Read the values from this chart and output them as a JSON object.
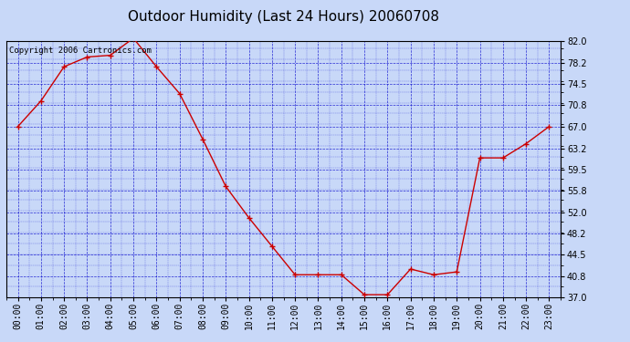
{
  "title": "Outdoor Humidity (Last 24 Hours) 20060708",
  "copyright_text": "Copyright 2006 Cartronics.com",
  "x_labels": [
    "00:00",
    "01:00",
    "02:00",
    "03:00",
    "04:00",
    "05:00",
    "06:00",
    "07:00",
    "08:00",
    "09:00",
    "10:00",
    "11:00",
    "12:00",
    "13:00",
    "14:00",
    "15:00",
    "16:00",
    "17:00",
    "18:00",
    "19:00",
    "20:00",
    "21:00",
    "22:00",
    "23:00"
  ],
  "y_values": [
    67.0,
    71.5,
    77.5,
    79.2,
    79.5,
    82.5,
    77.5,
    72.8,
    64.8,
    56.5,
    51.0,
    46.0,
    41.0,
    41.0,
    41.0,
    37.5,
    37.5,
    42.0,
    41.0,
    41.5,
    61.5,
    61.5,
    64.0,
    67.0
  ],
  "line_color": "#cc0000",
  "marker_color": "#cc0000",
  "background_color": "#c8d8f8",
  "plot_bg_color": "#c8d8f8",
  "grid_color": "#0000cc",
  "border_color": "#000000",
  "title_color": "#000000",
  "ylim": [
    37.0,
    82.0
  ],
  "yticks": [
    37.0,
    40.8,
    44.5,
    48.2,
    52.0,
    55.8,
    59.5,
    63.2,
    67.0,
    70.8,
    74.5,
    78.2,
    82.0
  ],
  "title_fontsize": 11,
  "tick_fontsize": 7,
  "copyright_fontsize": 6.5
}
